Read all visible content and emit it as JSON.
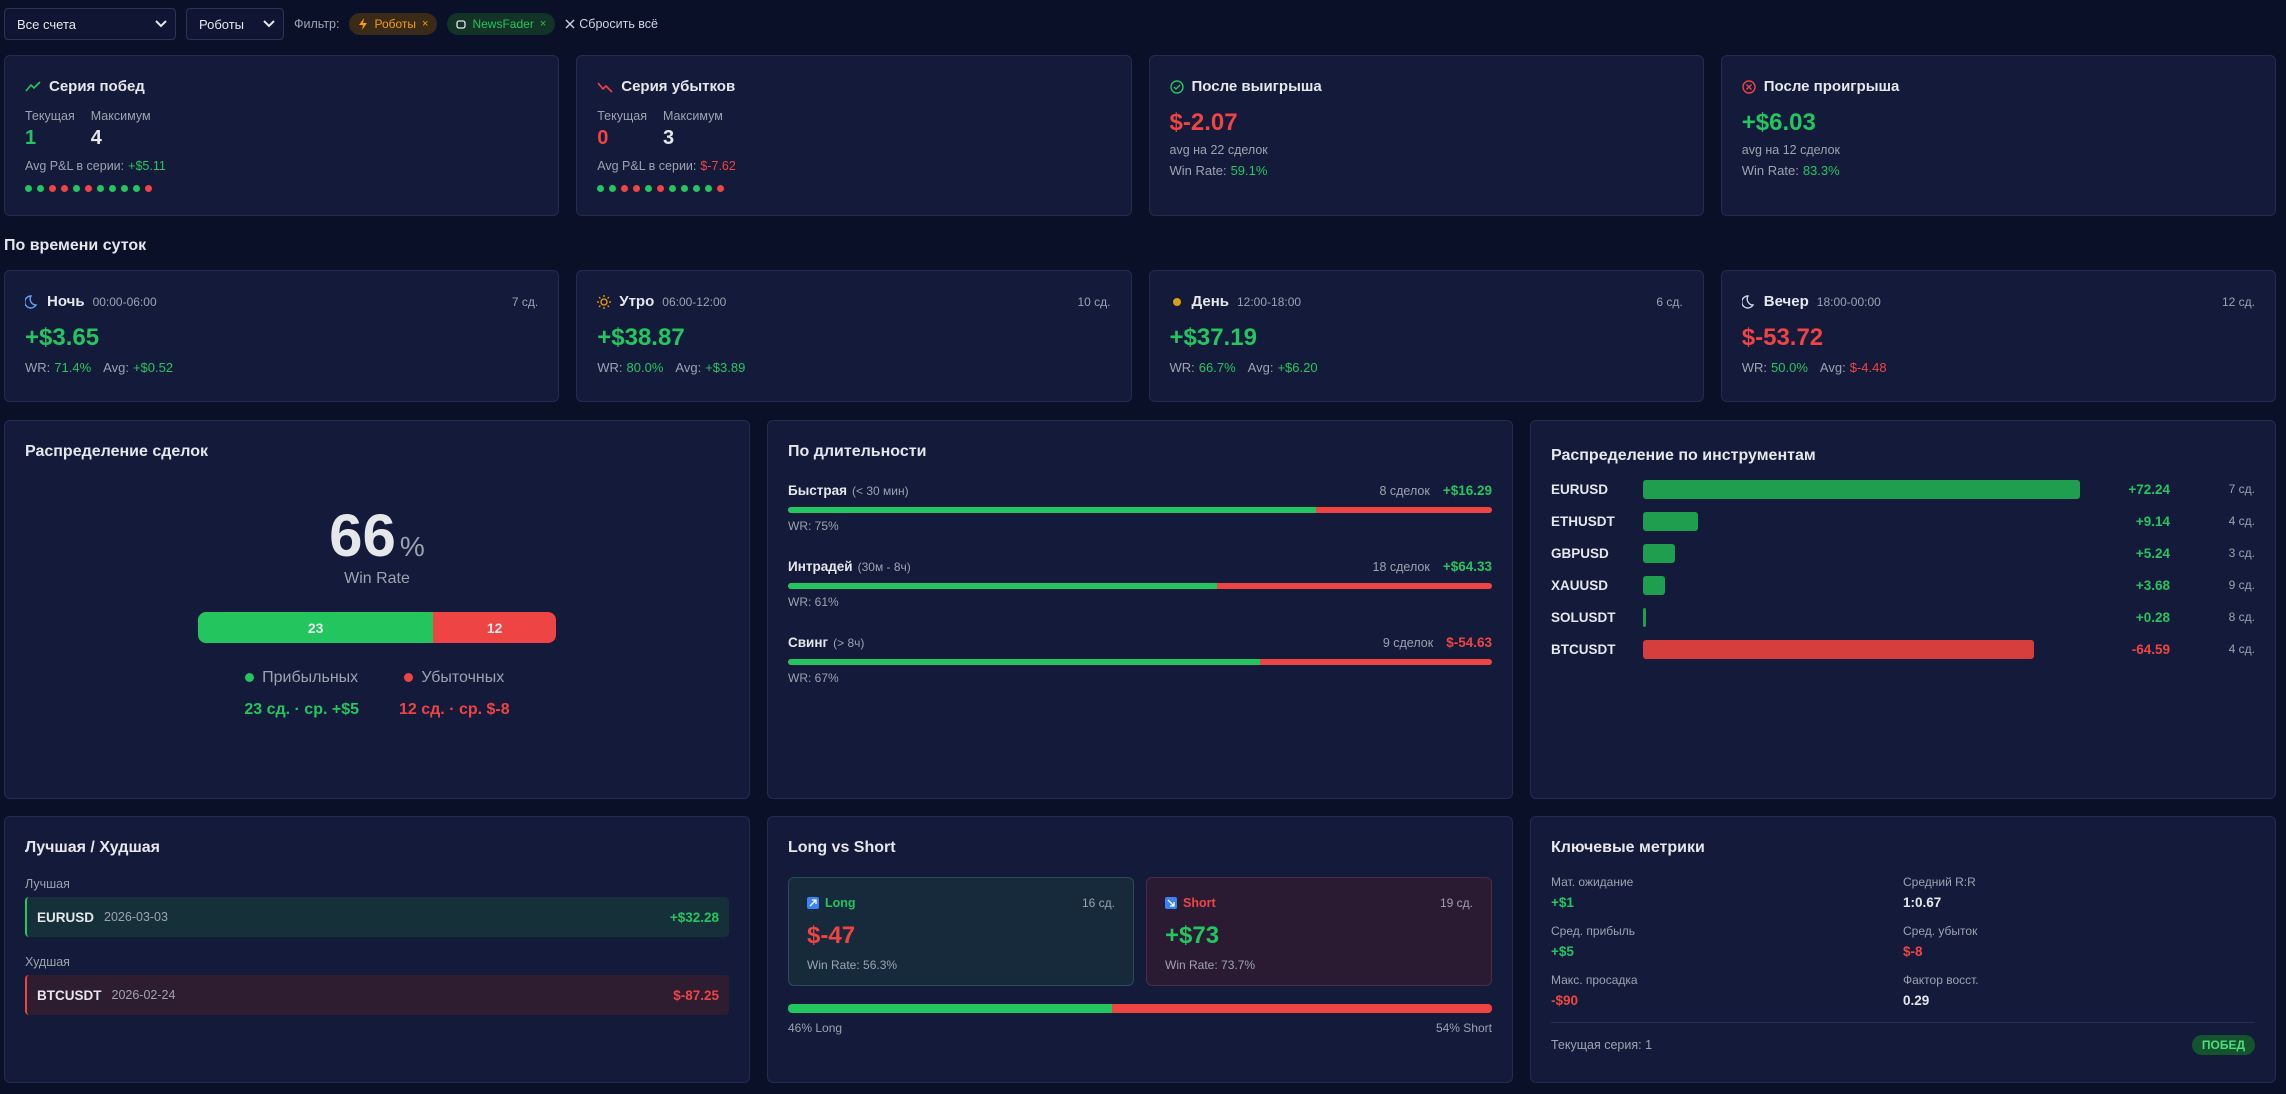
{
  "toolbar": {
    "account_select": "Все счета",
    "type_select": "Роботы",
    "filter_label": "Фильтр:",
    "chips": [
      "Роботы",
      "NewsFader"
    ],
    "reset": "Сбросить всё"
  },
  "streaks": [
    {
      "title": "Серия побед",
      "current_label": "Текущая",
      "current": "1",
      "max_label": "Максимум",
      "max": "4",
      "avg_label": "Avg P&L в серии:",
      "avg": "+$5.11",
      "dots": [
        "w",
        "w",
        "l",
        "l",
        "w",
        "l",
        "w",
        "w",
        "w",
        "w",
        "l"
      ]
    },
    {
      "title": "Серия убытков",
      "current_label": "Текущая",
      "current": "0",
      "max_label": "Максимум",
      "max": "3",
      "avg_label": "Avg P&L в серии:",
      "avg": "$-7.62",
      "dots": [
        "w",
        "w",
        "l",
        "l",
        "w",
        "l",
        "w",
        "w",
        "w",
        "w",
        "l"
      ]
    }
  ],
  "after": [
    {
      "title": "После выигрыша",
      "value": "$-2.07",
      "note": "avg на 22 сделок",
      "wr_label": "Win Rate:",
      "wr": "59.1%"
    },
    {
      "title": "После проигрыша",
      "value": "+$6.03",
      "note": "avg на 12 сделок",
      "wr_label": "Win Rate:",
      "wr": "83.3%"
    }
  ],
  "time_section": "По времени суток",
  "times": [
    {
      "name": "Ночь",
      "range": "00:00-06:00",
      "count": "7 сд.",
      "pnl": "+$3.65",
      "wr_label": "WR:",
      "wr": "71.4%",
      "avg_label": "Avg:",
      "avg": "+$0.52"
    },
    {
      "name": "Утро",
      "range": "06:00-12:00",
      "count": "10 сд.",
      "pnl": "+$38.87",
      "wr_label": "WR:",
      "wr": "80.0%",
      "avg_label": "Avg:",
      "avg": "+$3.89"
    },
    {
      "name": "День",
      "range": "12:00-18:00",
      "count": "6 сд.",
      "pnl": "+$37.19",
      "wr_label": "WR:",
      "wr": "66.7%",
      "avg_label": "Avg:",
      "avg": "+$6.20"
    },
    {
      "name": "Вечер",
      "range": "18:00-00:00",
      "count": "12 сд.",
      "pnl": "$-53.72",
      "wr_label": "WR:",
      "wr": "50.0%",
      "avg_label": "Avg:",
      "avg": "$-4.48"
    }
  ],
  "distribution": {
    "title": "Распределение сделок",
    "win_rate": 66,
    "pct": "%",
    "win_rate_label": "Win Rate",
    "wins": 23,
    "losses": 12,
    "win_label": "Прибыльных",
    "loss_label": "Убыточных",
    "win_summary": "23 сд. · ср. +$5",
    "loss_summary": "12 сд. · ср. $-8"
  },
  "duration": {
    "title": "По длительности",
    "rows": [
      {
        "name": "Быстрая",
        "range": "(< 30 мин)",
        "count": "8 сделок",
        "pnl": "+$16.29",
        "wr_label": "WR: 75%",
        "wr": 75
      },
      {
        "name": "Интрадей",
        "range": "(30м - 8ч)",
        "count": "18 сделок",
        "pnl": "+$64.33",
        "wr_label": "WR: 61%",
        "wr": 61
      },
      {
        "name": "Свинг",
        "range": "(> 8ч)",
        "count": "9 сделок",
        "pnl": "$-54.63",
        "wr_label": "WR: 67%",
        "wr": 67
      }
    ]
  },
  "instruments": {
    "title": "Распределение по инструментам",
    "rows": [
      {
        "symbol": "EURUSD",
        "pnl": 72.24,
        "pnl_label": "+72.24",
        "count": "7 сд."
      },
      {
        "symbol": "ETHUSDT",
        "pnl": 9.14,
        "pnl_label": "+9.14",
        "count": "4 сд."
      },
      {
        "symbol": "GBPUSD",
        "pnl": 5.24,
        "pnl_label": "+5.24",
        "count": "3 сд."
      },
      {
        "symbol": "XAUUSD",
        "pnl": 3.68,
        "pnl_label": "+3.68",
        "count": "9 сд."
      },
      {
        "symbol": "SOLUSDT",
        "pnl": 0.28,
        "pnl_label": "+0.28",
        "count": "8 сд."
      },
      {
        "symbol": "BTCUSDT",
        "pnl": -64.59,
        "pnl_label": "-64.59",
        "count": "4 сд."
      }
    ]
  },
  "best_worst": {
    "title": "Лучшая / Худшая",
    "best_label": "Лучшая",
    "best": {
      "symbol": "EURUSD",
      "date": "2026-03-03",
      "pnl": "+$32.28"
    },
    "worst_label": "Худшая",
    "worst": {
      "symbol": "BTCUSDT",
      "date": "2026-02-24",
      "pnl": "$-87.25"
    }
  },
  "long_short": {
    "title": "Long vs Short",
    "long": {
      "name": "Long",
      "count": "16 сд.",
      "pnl": "$-47",
      "wr": "Win Rate: 56.3%"
    },
    "short": {
      "name": "Short",
      "count": "19 сд.",
      "pnl": "+$73",
      "wr": "Win Rate: 73.7%"
    },
    "long_pct": 46,
    "long_pct_label": "46% Long",
    "short_pct": 54,
    "short_pct_label": "54% Short"
  },
  "metrics": {
    "title": "Ключевые метрики",
    "items": [
      {
        "label": "Мат. ожидание",
        "value": "+$1"
      },
      {
        "label": "Средний R:R",
        "value": "1:0.67"
      },
      {
        "label": "Сред. прибыль",
        "value": "+$5"
      },
      {
        "label": "Сред. убыток",
        "value": "$-8"
      },
      {
        "label": "Макс. просадка",
        "value": "-$90"
      },
      {
        "label": "Фактор восст.",
        "value": "0.29"
      }
    ],
    "current_streak": "Текущая серия: 1",
    "badge": "ПОБЕД"
  }
}
